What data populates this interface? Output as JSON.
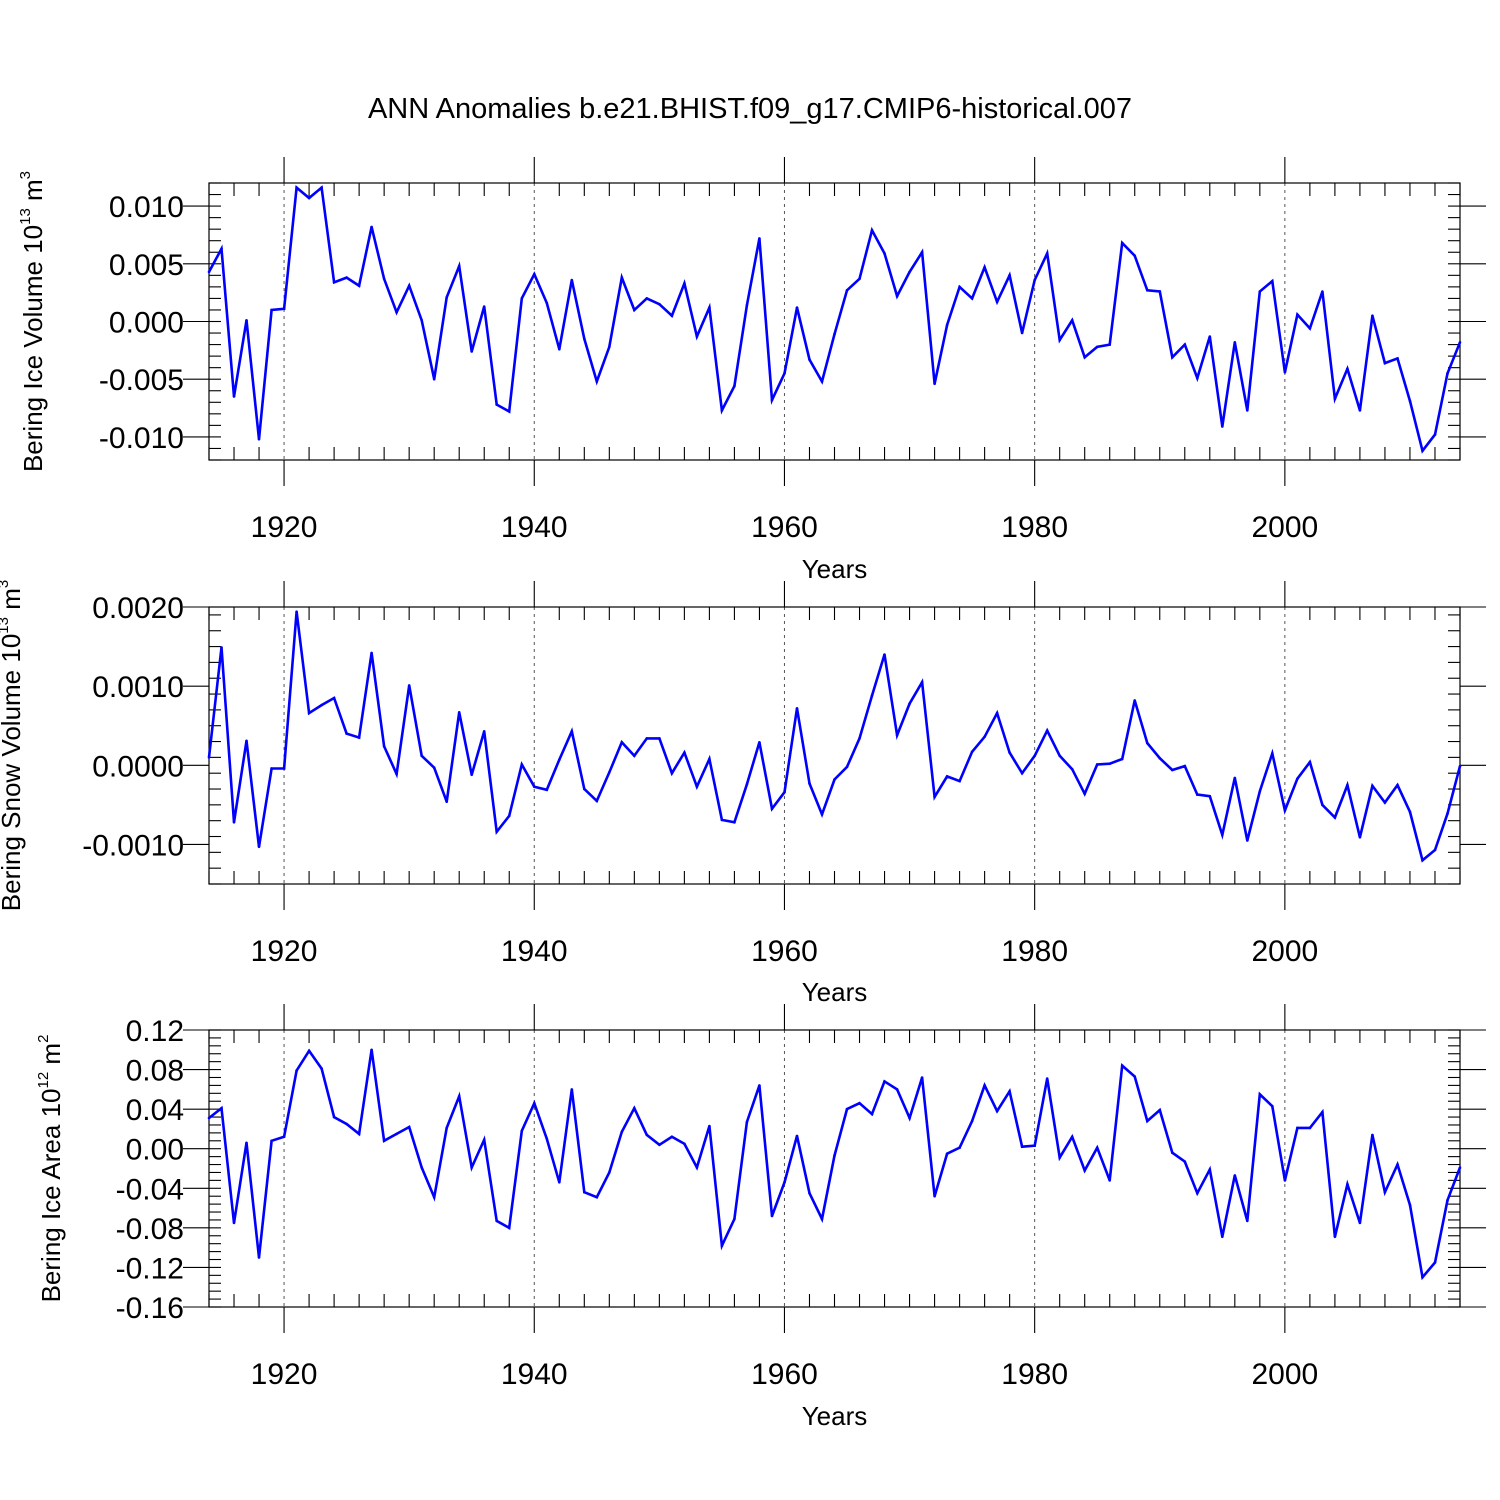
{
  "figure_title": "ANN Anomalies b.e21.BHIST.f09_g17.CMIP6-historical.007",
  "colors": {
    "series": "#0000ff"
  },
  "chart_data": [
    {
      "type": "line",
      "title": "ANN Anomalies b.e21.BHIST.f09_g17.CMIP6-historical.007",
      "xlabel": "Years",
      "ylabel": {
        "main": "Bering Ice Volume 10",
        "sup": "13",
        "unit": "m",
        "unit_sup": "3"
      },
      "xlim": [
        1914,
        2014
      ],
      "ylim": [
        -0.012,
        0.012
      ],
      "x_ticks": [
        1920,
        1940,
        1960,
        1980,
        2000
      ],
      "x_tick_labels": [
        "1920",
        "1940",
        "1960",
        "1980",
        "2000"
      ],
      "y_ticks": [
        -0.01,
        -0.005,
        0.0,
        0.005,
        0.01
      ],
      "y_tick_labels": [
        "-0.010",
        "-0.005",
        "0.000",
        "0.005",
        "0.010"
      ],
      "y_minor_step": 0.001,
      "grid": "vertical dashed at major x ticks",
      "series": [
        {
          "name": "Bering Ice Volume",
          "x_start": 1914,
          "values": [
            0.0043,
            0.0063,
            -0.0065,
            0.0001,
            -0.0102,
            0.001,
            0.0011,
            0.0116,
            0.0107,
            0.0116,
            0.0034,
            0.0038,
            0.0031,
            0.0082,
            0.0037,
            0.0008,
            0.0031,
            0.0001,
            -0.005,
            0.0021,
            0.0048,
            -0.0026,
            0.0013,
            -0.0072,
            -0.0078,
            0.002,
            0.0041,
            0.0016,
            -0.0024,
            0.0036,
            -0.0015,
            -0.0052,
            -0.0022,
            0.0038,
            0.001,
            0.002,
            0.0015,
            0.0005,
            0.0033,
            -0.0013,
            0.0012,
            -0.0077,
            -0.0056,
            0.0014,
            0.0072,
            -0.0068,
            -0.0045,
            0.0012,
            -0.0033,
            -0.0052,
            -0.0011,
            0.0027,
            0.0037,
            0.0079,
            0.0059,
            0.0022,
            0.0043,
            0.006,
            -0.0054,
            -0.0003,
            0.003,
            0.002,
            0.0047,
            0.0017,
            0.004,
            -0.001,
            0.0036,
            0.0059,
            -0.0016,
            0.0001,
            -0.0031,
            -0.0022,
            -0.002,
            0.0068,
            0.0057,
            0.0027,
            0.0026,
            -0.0031,
            -0.002,
            -0.0049,
            -0.0013,
            -0.0091,
            -0.0018,
            -0.0077,
            0.0026,
            0.0035,
            -0.0044,
            0.0006,
            -0.0006,
            0.0026,
            -0.0067,
            -0.0041,
            -0.0077,
            0.0005,
            -0.0036,
            -0.0032,
            -0.0069,
            -0.0112,
            -0.0098,
            -0.0045,
            -0.0018
          ]
        }
      ]
    },
    {
      "type": "line",
      "xlabel": "Years",
      "ylabel": {
        "main": "Bering Snow Volume 10",
        "sup": "13",
        "unit": "m",
        "unit_sup": "3"
      },
      "xlim": [
        1914,
        2014
      ],
      "ylim": [
        -0.0015,
        0.002
      ],
      "x_ticks": [
        1920,
        1940,
        1960,
        1980,
        2000
      ],
      "x_tick_labels": [
        "1920",
        "1940",
        "1960",
        "1980",
        "2000"
      ],
      "y_ticks": [
        -0.001,
        0.0,
        0.001,
        0.002
      ],
      "y_tick_labels": [
        "-0.0010",
        "0.0000",
        "0.0010",
        "0.0020"
      ],
      "y_minor_step": 0.0002,
      "grid": "vertical dashed at major x ticks",
      "series": [
        {
          "name": "Bering Snow Volume",
          "x_start": 1914,
          "values": [
            0.0001,
            0.00149,
            -0.00072,
            0.00031,
            -0.00103,
            -4e-05,
            -4e-05,
            0.00194,
            0.00066,
            0.00076,
            0.00085,
            0.0004,
            0.00035,
            0.00142,
            0.00024,
            -0.00011,
            0.00101,
            0.00012,
            -3e-05,
            -0.00046,
            0.00067,
            -0.00012,
            0.00043,
            -0.00084,
            -0.00064,
            1e-05,
            -0.00027,
            -0.00031,
            7e-05,
            0.00043,
            -0.0003,
            -0.00045,
            -9e-05,
            0.00029,
            0.00012,
            0.00034,
            0.00034,
            -0.0001,
            0.00016,
            -0.00027,
            8e-05,
            -0.00069,
            -0.00072,
            -0.00024,
            0.00029,
            -0.00055,
            -0.00034,
            0.00072,
            -0.00023,
            -0.00062,
            -0.00018,
            -2e-05,
            0.00034,
            0.00088,
            0.0014,
            0.00038,
            0.00078,
            0.00105,
            -0.0004,
            -0.00014,
            -0.0002,
            0.00017,
            0.00036,
            0.00066,
            0.00016,
            -0.0001,
            0.00012,
            0.00044,
            0.00012,
            -5e-05,
            -0.00036,
            1e-05,
            2e-05,
            8e-05,
            0.00082,
            0.00028,
            9e-05,
            -6e-05,
            -1e-05,
            -0.00037,
            -0.00039,
            -0.00088,
            -0.00016,
            -0.00095,
            -0.00033,
            0.00015,
            -0.00057,
            -0.00017,
            4e-05,
            -0.0005,
            -0.00066,
            -0.00025,
            -0.00091,
            -0.00026,
            -0.00047,
            -0.00025,
            -0.00059,
            -0.0012,
            -0.00107,
            -0.00061,
            -1e-05
          ]
        }
      ]
    },
    {
      "type": "line",
      "xlabel": "Years",
      "ylabel": {
        "main": "Bering Ice Area 10",
        "sup": "12",
        "unit": "m",
        "unit_sup": "2"
      },
      "xlim": [
        1914,
        2014
      ],
      "ylim": [
        -0.16,
        0.12
      ],
      "x_ticks": [
        1920,
        1940,
        1960,
        1980,
        2000
      ],
      "x_tick_labels": [
        "1920",
        "1940",
        "1960",
        "1980",
        "2000"
      ],
      "y_ticks": [
        -0.16,
        -0.12,
        -0.08,
        -0.04,
        0.0,
        0.04,
        0.08,
        0.12
      ],
      "y_tick_labels": [
        "-0.16",
        "-0.12",
        "-0.08",
        "-0.04",
        "0.00",
        "0.04",
        "0.08",
        "0.12"
      ],
      "y_minor_step": 0.008,
      "grid": "vertical dashed at major x ticks",
      "series": [
        {
          "name": "Bering Ice Area",
          "x_start": 1914,
          "values": [
            0.031,
            0.041,
            -0.075,
            0.006,
            -0.11,
            0.008,
            0.012,
            0.079,
            0.099,
            0.081,
            0.032,
            0.025,
            0.015,
            0.1,
            0.008,
            0.015,
            0.022,
            -0.019,
            -0.049,
            0.021,
            0.053,
            -0.019,
            0.009,
            -0.073,
            -0.08,
            0.018,
            0.046,
            0.01,
            -0.034,
            0.06,
            -0.044,
            -0.049,
            -0.024,
            0.017,
            0.041,
            0.014,
            0.004,
            0.012,
            0.005,
            -0.019,
            0.023,
            -0.098,
            -0.071,
            0.027,
            0.064,
            -0.068,
            -0.034,
            0.013,
            -0.045,
            -0.071,
            -0.007,
            0.04,
            0.046,
            0.035,
            0.068,
            0.06,
            0.031,
            0.072,
            -0.048,
            -0.005,
            0.001,
            0.028,
            0.064,
            0.038,
            0.058,
            0.002,
            0.003,
            0.071,
            -0.009,
            0.012,
            -0.022,
            0.001,
            -0.032,
            0.084,
            0.073,
            0.028,
            0.039,
            -0.004,
            -0.013,
            -0.045,
            -0.021,
            -0.089,
            -0.027,
            -0.073,
            0.055,
            0.043,
            -0.032,
            0.021,
            0.021,
            0.037,
            -0.089,
            -0.036,
            -0.075,
            0.014,
            -0.044,
            -0.016,
            -0.057,
            -0.13,
            -0.115,
            -0.052,
            -0.019
          ]
        }
      ]
    }
  ]
}
